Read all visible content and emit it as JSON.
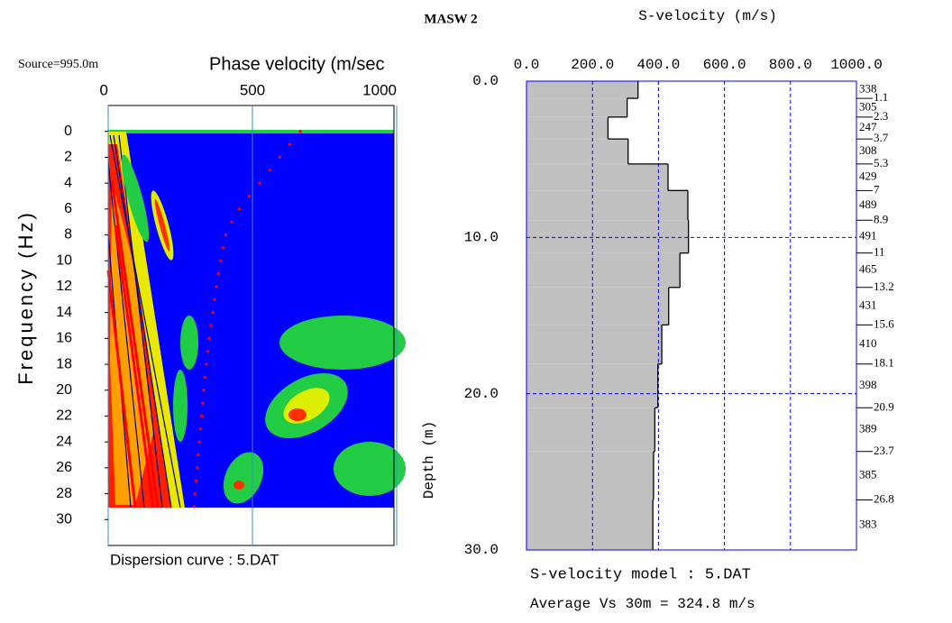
{
  "title": "MASW 2",
  "chart_data": [
    {
      "type": "dispersion",
      "annotation": "Source=995.0m",
      "x_label": "Phase velocity (m/sec",
      "y_label": "Frequency (Hz)",
      "caption": "Dispersion curve : 5.DAT",
      "xlim": [
        0,
        1000
      ],
      "xticks": [
        0,
        500,
        1000
      ],
      "ylim": [
        -2,
        32
      ],
      "yticks": [
        0,
        2,
        4,
        6,
        8,
        10,
        12,
        14,
        16,
        18,
        20,
        22,
        24,
        26,
        28,
        30
      ],
      "y_reversed": true,
      "series": [
        {
          "color": "#ff0000",
          "x": [
            666,
            630,
            595,
            560,
            525,
            488,
            455,
            428,
            408,
            398,
            390,
            382,
            375,
            369,
            363,
            356,
            350,
            345,
            340,
            335,
            331,
            328,
            324,
            320,
            316,
            312,
            309,
            305,
            301,
            297
          ],
          "y": [
            0,
            1,
            2,
            3,
            4,
            5,
            6,
            7,
            8,
            9,
            10,
            11,
            12,
            13,
            14,
            15,
            16,
            17,
            18,
            19,
            20,
            21,
            22,
            23,
            24,
            25,
            26,
            27,
            28,
            29
          ]
        }
      ]
    },
    {
      "type": "velocity-profile",
      "x_label": "S-velocity (m/s)",
      "y_label": "Depth (m)",
      "caption": "S-velocity model : 5.DAT",
      "annotation": "Average Vs 30m = 324.8 m/s",
      "xlim": [
        0,
        1000
      ],
      "xticks": [
        {
          "value": 0,
          "label": "0.0"
        },
        {
          "value": 200,
          "label": "200.0"
        },
        {
          "value": 400,
          "label": "400.0"
        },
        {
          "value": 600,
          "label": "600.0"
        },
        {
          "value": 800,
          "label": "800.0"
        },
        {
          "value": 1000,
          "label": "1000.0"
        }
      ],
      "ylim": [
        0,
        30
      ],
      "yticks": [
        {
          "value": 0,
          "label": "0.0"
        },
        {
          "value": 10,
          "label": "10.0"
        },
        {
          "value": 20,
          "label": "20.0"
        },
        {
          "value": 30,
          "label": "30.0"
        }
      ],
      "y_reversed": true,
      "grid": true,
      "grid_color": "#0000ff",
      "fill_color": "#c0c0c0",
      "layer_velocities": [
        338,
        305,
        247,
        308,
        429,
        489,
        491,
        465,
        431,
        410,
        398,
        389,
        385,
        383
      ],
      "layer_boundaries": [
        1.1,
        2.3,
        3.7,
        5.3,
        7.0,
        8.9,
        11.0,
        13.2,
        15.6,
        18.1,
        20.9,
        23.7,
        26.8
      ]
    }
  ]
}
